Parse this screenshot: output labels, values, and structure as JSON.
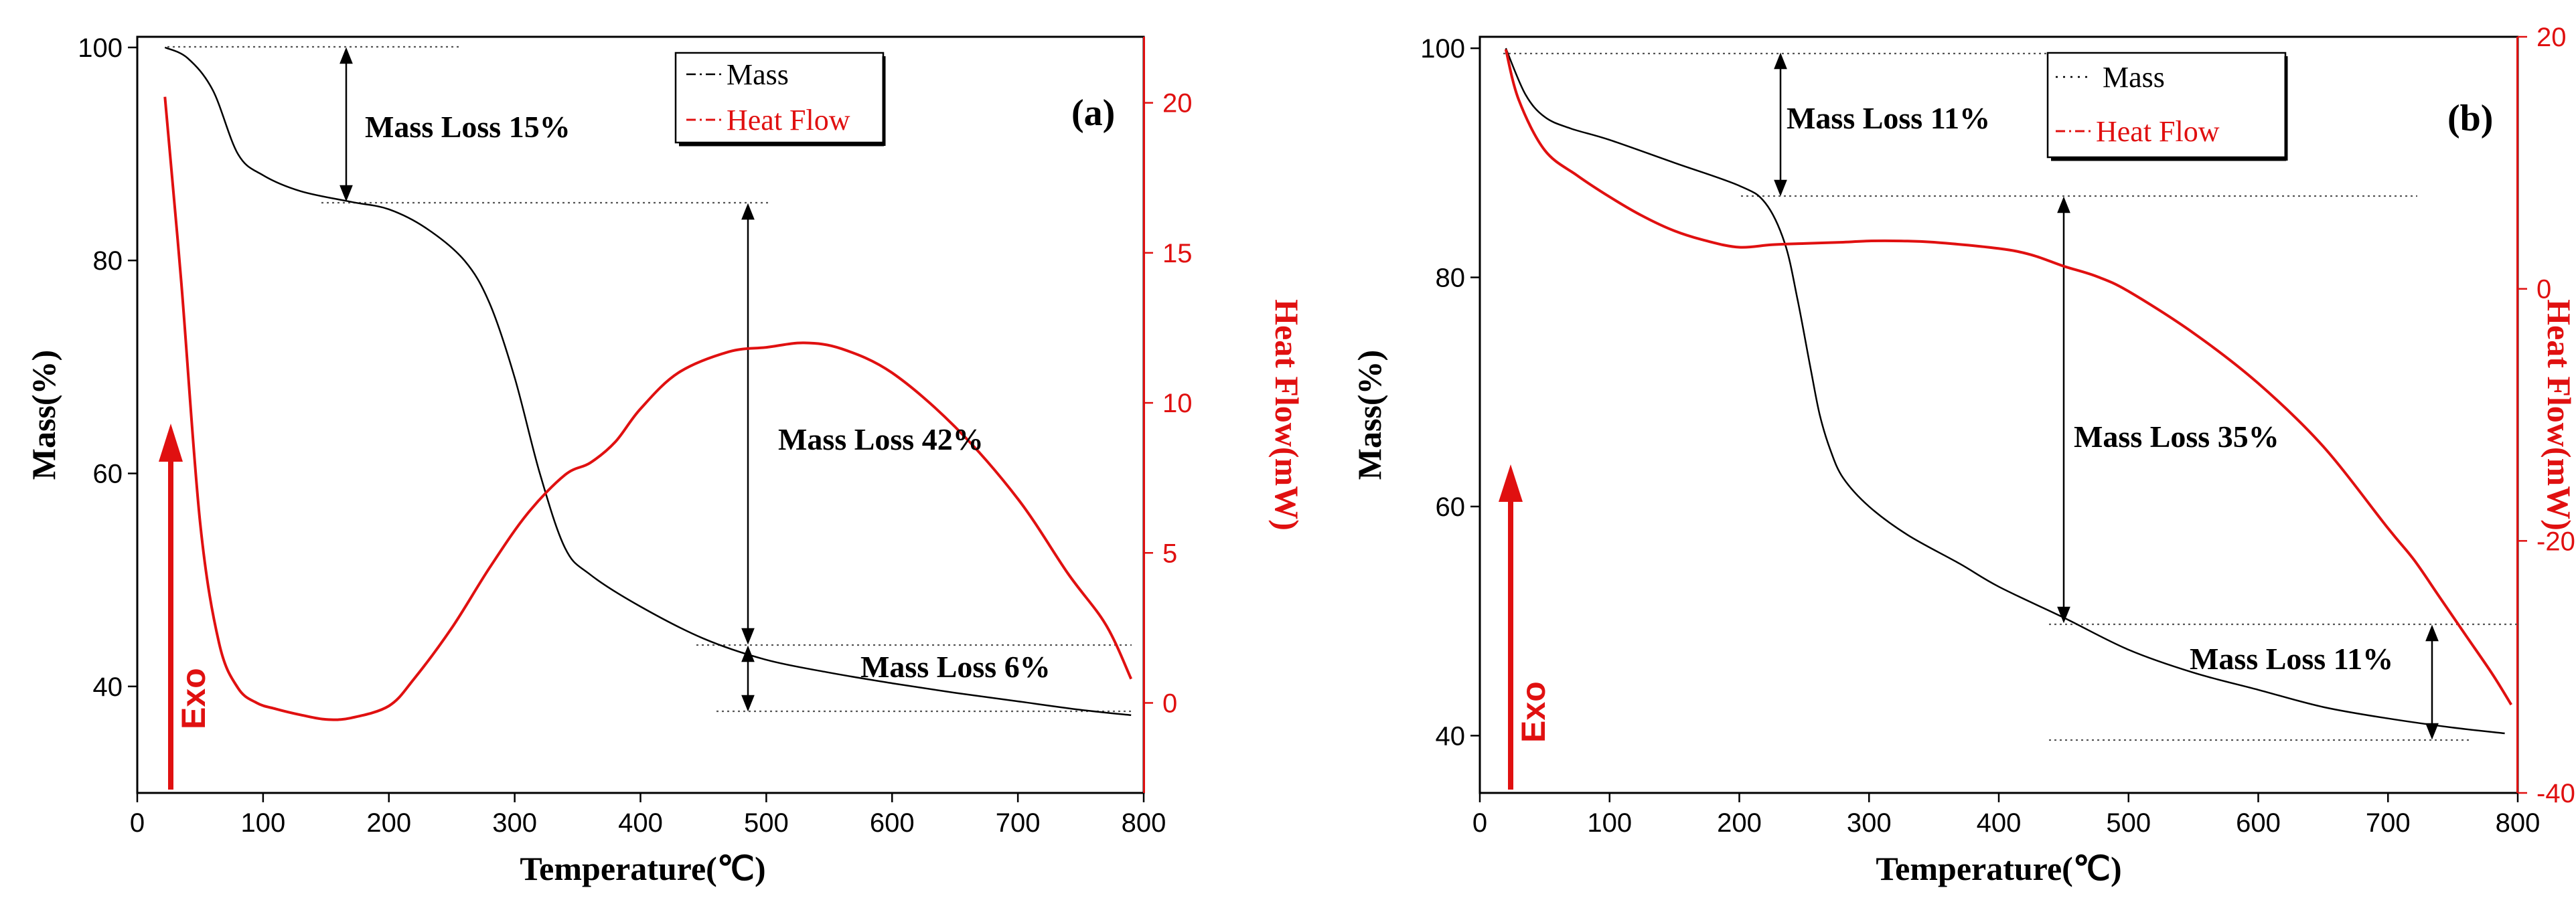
{
  "chart_data": [
    {
      "type": "line",
      "panel_label": "(a)",
      "xlabel": "Temperature(℃)",
      "ylabel": "Mass(%)",
      "y2label": "Heat Flow(mW)",
      "xlim": [
        0,
        800
      ],
      "ylim": [
        30,
        101
      ],
      "y2lim": [
        -3,
        22.2
      ],
      "x_ticks": [
        0,
        100,
        200,
        300,
        400,
        500,
        600,
        700,
        800
      ],
      "y_ticks": [
        40,
        60,
        80,
        100
      ],
      "y2_ticks": [
        0,
        5,
        10,
        15,
        20
      ],
      "legend": {
        "position": "top-center",
        "entries": [
          "Mass",
          "Heat Flow"
        ]
      },
      "exo_label": "Exo",
      "series": [
        {
          "name": "Mass",
          "axis": "left",
          "color": "#000000",
          "x": [
            22,
            40,
            60,
            80,
            100,
            130,
            170,
            200,
            230,
            260,
            280,
            300,
            320,
            340,
            360,
            400,
            450,
            500,
            550,
            600,
            650,
            700,
            750,
            790
          ],
          "y": [
            100,
            99,
            96,
            90,
            88,
            86.5,
            85.5,
            84.8,
            83,
            80,
            76,
            69,
            60,
            53,
            50.5,
            47.5,
            44.5,
            42.5,
            41.3,
            40.3,
            39.4,
            38.6,
            37.8,
            37.3
          ]
        },
        {
          "name": "Heat Flow",
          "axis": "right",
          "color": "#e01010",
          "x": [
            22,
            35,
            50,
            65,
            80,
            95,
            110,
            130,
            150,
            170,
            200,
            220,
            250,
            280,
            310,
            340,
            360,
            380,
            400,
            430,
            470,
            500,
            530,
            560,
            600,
            650,
            700,
            740,
            770,
            790
          ],
          "y": [
            20.2,
            14,
            6,
            2,
            0.5,
            0,
            -0.2,
            -0.4,
            -0.55,
            -0.5,
            -0.1,
            0.8,
            2.5,
            4.5,
            6.3,
            7.6,
            8,
            8.7,
            9.8,
            11,
            11.7,
            11.85,
            12,
            11.8,
            11,
            9.2,
            6.8,
            4.3,
            2.6,
            0.8
          ]
        }
      ],
      "annotations": [
        "Mass Loss 15%",
        "Mass Loss 42%",
        "Mass Loss 6%"
      ]
    },
    {
      "type": "line",
      "panel_label": "(b)",
      "xlabel": "Temperature(℃)",
      "ylabel": "Mass(%)",
      "y2label": "Heat Flow(mW)",
      "xlim": [
        0,
        800
      ],
      "ylim": [
        35,
        101
      ],
      "y2lim": [
        -40,
        20
      ],
      "x_ticks": [
        0,
        100,
        200,
        300,
        400,
        500,
        600,
        700,
        800
      ],
      "y_ticks": [
        40,
        60,
        80,
        100
      ],
      "y2_ticks": [
        -40,
        -20,
        0,
        20
      ],
      "legend": {
        "position": "top-right",
        "entries": [
          "Mass",
          "Heat Flow"
        ]
      },
      "exo_label": "Exo",
      "series": [
        {
          "name": "Mass",
          "axis": "left",
          "color": "#000000",
          "x": [
            20,
            35,
            50,
            70,
            100,
            150,
            200,
            220,
            235,
            245,
            255,
            262,
            270,
            280,
            300,
            330,
            370,
            400,
            450,
            500,
            550,
            600,
            650,
            700,
            750,
            790
          ],
          "y": [
            100,
            96,
            94,
            93,
            92,
            90,
            88,
            86.5,
            83,
            78,
            72,
            68,
            65,
            62.5,
            60,
            57.5,
            55,
            53,
            50.3,
            47.5,
            45.5,
            44,
            42.5,
            41.5,
            40.7,
            40.2
          ]
        },
        {
          "name": "Heat Flow",
          "axis": "right",
          "color": "#e01010",
          "x": [
            20,
            30,
            50,
            75,
            100,
            125,
            150,
            175,
            200,
            225,
            250,
            280,
            300,
            325,
            350,
            400,
            425,
            450,
            475,
            500,
            550,
            600,
            650,
            700,
            720,
            740,
            760,
            780,
            795
          ],
          "y": [
            19,
            15,
            11,
            9,
            7.3,
            5.8,
            4.6,
            3.8,
            3.3,
            3.5,
            3.6,
            3.7,
            3.8,
            3.8,
            3.7,
            3.2,
            2.7,
            1.8,
            1,
            -0.2,
            -3.5,
            -7.5,
            -12.5,
            -19,
            -21.5,
            -24.5,
            -27.5,
            -30.5,
            -33
          ]
        }
      ],
      "annotations": [
        "Mass Loss 11%",
        "Mass Loss 35%",
        "Mass Loss 11%"
      ]
    }
  ]
}
